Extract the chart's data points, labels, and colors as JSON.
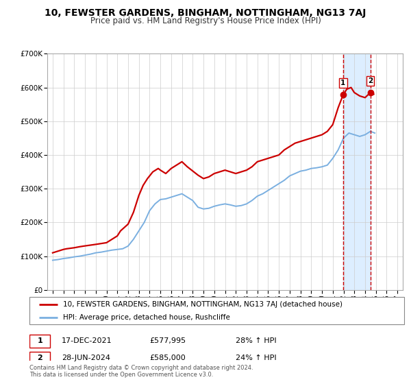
{
  "title": "10, FEWSTER GARDENS, BINGHAM, NOTTINGHAM, NG13 7AJ",
  "subtitle": "Price paid vs. HM Land Registry's House Price Index (HPI)",
  "legend_line1": "10, FEWSTER GARDENS, BINGHAM, NOTTINGHAM, NG13 7AJ (detached house)",
  "legend_line2": "HPI: Average price, detached house, Rushcliffe",
  "red_color": "#cc0000",
  "blue_color": "#7aafe0",
  "marker1_date": "17-DEC-2021",
  "marker1_price": 577995,
  "marker1_hpi": "28% ↑ HPI",
  "marker2_date": "28-JUN-2024",
  "marker2_price": 585000,
  "marker2_hpi": "24% ↑ HPI",
  "shade_color": "#ddeeff",
  "footer": "Contains HM Land Registry data © Crown copyright and database right 2024.\nThis data is licensed under the Open Government Licence v3.0.",
  "ylim": [
    0,
    700000
  ],
  "yticks": [
    0,
    100000,
    200000,
    300000,
    400000,
    500000,
    600000,
    700000
  ],
  "ytick_labels": [
    "£0",
    "£100K",
    "£200K",
    "£300K",
    "£400K",
    "£500K",
    "£600K",
    "£700K"
  ],
  "xlim_start": 1994.5,
  "xlim_end": 2027.5,
  "xticks": [
    1995,
    1996,
    1997,
    1998,
    1999,
    2000,
    2001,
    2002,
    2003,
    2004,
    2005,
    2006,
    2007,
    2008,
    2009,
    2010,
    2011,
    2012,
    2013,
    2014,
    2015,
    2016,
    2017,
    2018,
    2019,
    2020,
    2021,
    2022,
    2023,
    2024,
    2025,
    2026,
    2027
  ],
  "marker1_x": 2021.96,
  "marker2_x": 2024.49,
  "red_data_x": [
    1995.0,
    1995.5,
    1996.0,
    1996.3,
    1997.0,
    1997.5,
    1997.9,
    1999.0,
    2000.0,
    2000.5,
    2001.0,
    2001.3,
    2002.0,
    2002.5,
    2003.0,
    2003.4,
    2003.8,
    2004.3,
    2004.8,
    2005.0,
    2005.5,
    2006.0,
    2006.5,
    2007.0,
    2007.5,
    2007.9,
    2008.5,
    2009.0,
    2009.5,
    2010.0,
    2010.5,
    2011.0,
    2011.5,
    2012.0,
    2012.5,
    2013.0,
    2013.5,
    2014.0,
    2014.5,
    2015.0,
    2015.5,
    2016.0,
    2016.5,
    2017.0,
    2017.5,
    2018.0,
    2018.5,
    2019.0,
    2019.5,
    2020.0,
    2020.5,
    2021.0,
    2021.5,
    2021.96,
    2022.3,
    2022.7,
    2023.0,
    2023.5,
    2024.0,
    2024.49,
    2024.8
  ],
  "red_data_y": [
    110000,
    115000,
    120000,
    122000,
    125000,
    128000,
    130000,
    135000,
    140000,
    150000,
    160000,
    175000,
    195000,
    230000,
    280000,
    310000,
    330000,
    350000,
    360000,
    355000,
    345000,
    360000,
    370000,
    380000,
    365000,
    355000,
    340000,
    330000,
    335000,
    345000,
    350000,
    355000,
    350000,
    345000,
    350000,
    355000,
    365000,
    380000,
    385000,
    390000,
    395000,
    400000,
    415000,
    425000,
    435000,
    440000,
    445000,
    450000,
    455000,
    460000,
    470000,
    490000,
    540000,
    577995,
    595000,
    600000,
    585000,
    575000,
    570000,
    585000,
    580000
  ],
  "blue_data_x": [
    1995.0,
    1995.5,
    1996.0,
    1996.5,
    1997.0,
    1997.5,
    1998.0,
    1998.5,
    1999.0,
    1999.5,
    2000.0,
    2000.5,
    2001.0,
    2001.5,
    2002.0,
    2002.5,
    2003.0,
    2003.5,
    2004.0,
    2004.5,
    2005.0,
    2005.5,
    2006.0,
    2006.5,
    2007.0,
    2007.5,
    2008.0,
    2008.5,
    2009.0,
    2009.5,
    2010.0,
    2010.5,
    2011.0,
    2011.5,
    2012.0,
    2012.5,
    2013.0,
    2013.5,
    2014.0,
    2014.5,
    2015.0,
    2015.5,
    2016.0,
    2016.5,
    2017.0,
    2017.5,
    2018.0,
    2018.5,
    2019.0,
    2019.5,
    2020.0,
    2020.5,
    2021.0,
    2021.5,
    2022.0,
    2022.5,
    2023.0,
    2023.5,
    2024.0,
    2024.5,
    2024.9
  ],
  "blue_data_y": [
    88000,
    90000,
    93000,
    95000,
    98000,
    100000,
    103000,
    106000,
    110000,
    112000,
    115000,
    118000,
    120000,
    122000,
    130000,
    150000,
    175000,
    200000,
    235000,
    255000,
    268000,
    270000,
    275000,
    280000,
    285000,
    275000,
    265000,
    245000,
    240000,
    242000,
    248000,
    252000,
    255000,
    252000,
    248000,
    250000,
    255000,
    265000,
    278000,
    285000,
    295000,
    305000,
    315000,
    325000,
    338000,
    345000,
    352000,
    355000,
    360000,
    362000,
    365000,
    370000,
    390000,
    415000,
    450000,
    465000,
    460000,
    455000,
    460000,
    470000,
    465000
  ]
}
